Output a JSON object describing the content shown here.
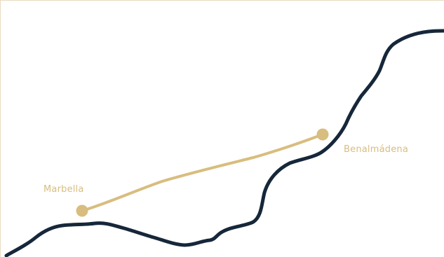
{
  "map": {
    "places": [
      {
        "name": "Marbella"
      },
      {
        "name": "Benalmádena"
      }
    ],
    "colors": {
      "coastline": "#16273a",
      "route": "#d8bd7e",
      "marker": "#d8bd7e",
      "label": "#d8bd7e",
      "frame": "#e8dcc0",
      "background": "#ffffff"
    }
  }
}
